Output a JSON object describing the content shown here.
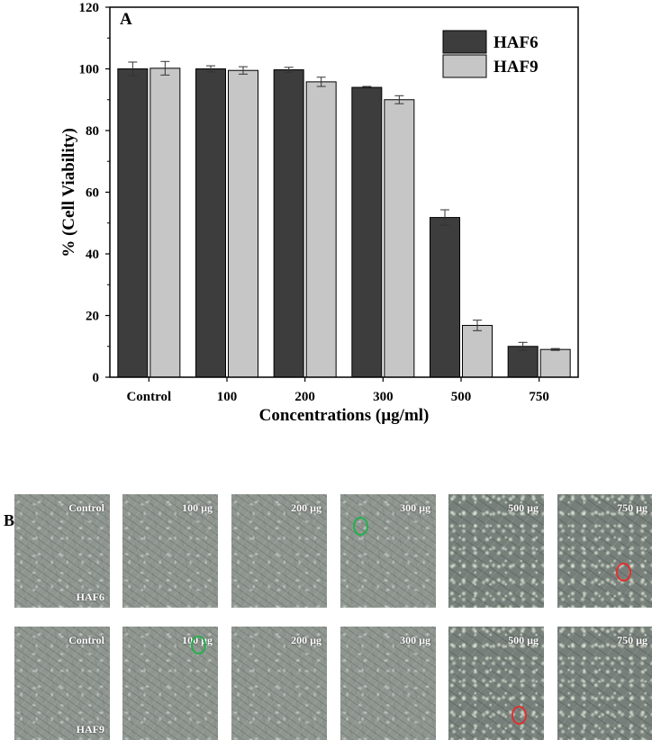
{
  "panel_a_label": "A",
  "panel_b_label": "B",
  "chart_data": {
    "type": "bar",
    "title": "",
    "xlabel": "Concentrations (µg/ml)",
    "ylabel": "% (Cell Viability)",
    "ylim": [
      0,
      120
    ],
    "yticks": [
      0,
      20,
      40,
      60,
      80,
      100,
      120
    ],
    "categories": [
      "Control",
      "100",
      "200",
      "300",
      "500",
      "750"
    ],
    "series": [
      {
        "name": "HAF6",
        "color": "#3d3d3d",
        "values": [
          100,
          100,
          99.7,
          94,
          51.8,
          10
        ],
        "errors": [
          2.2,
          1.0,
          0.8,
          0.3,
          2.5,
          1.3
        ]
      },
      {
        "name": "HAF9",
        "color": "#c6c6c6",
        "values": [
          100.2,
          99.5,
          95.8,
          90,
          16.8,
          9
        ],
        "errors": [
          2.2,
          1.2,
          1.5,
          1.3,
          1.7,
          0.3
        ]
      }
    ],
    "legend_position": "top-right",
    "grid": false
  },
  "micrographs": {
    "rows": [
      {
        "strain": "HAF6",
        "panels": [
          {
            "label": "Control",
            "marker": "",
            "density": "normal"
          },
          {
            "label": "100 µg",
            "marker": "",
            "density": "normal"
          },
          {
            "label": "200 µg",
            "marker": "",
            "density": "normal"
          },
          {
            "label": "300 µg",
            "marker": "green",
            "density": "normal"
          },
          {
            "label": "500 µg",
            "marker": "",
            "density": "dense"
          },
          {
            "label": "750 µg",
            "marker": "red",
            "density": "dense"
          }
        ]
      },
      {
        "strain": "HAF9",
        "panels": [
          {
            "label": "Control",
            "marker": "",
            "density": "normal"
          },
          {
            "label": "100 µg",
            "marker": "green",
            "density": "normal"
          },
          {
            "label": "200 µg",
            "marker": "",
            "density": "normal"
          },
          {
            "label": "300 µg",
            "marker": "",
            "density": "normal"
          },
          {
            "label": "500 µg",
            "marker": "red",
            "density": "dense"
          },
          {
            "label": "750 µg",
            "marker": "",
            "density": "dense"
          }
        ]
      }
    ],
    "marker_colors": {
      "green": "#22b14c",
      "red": "#e03030"
    }
  }
}
